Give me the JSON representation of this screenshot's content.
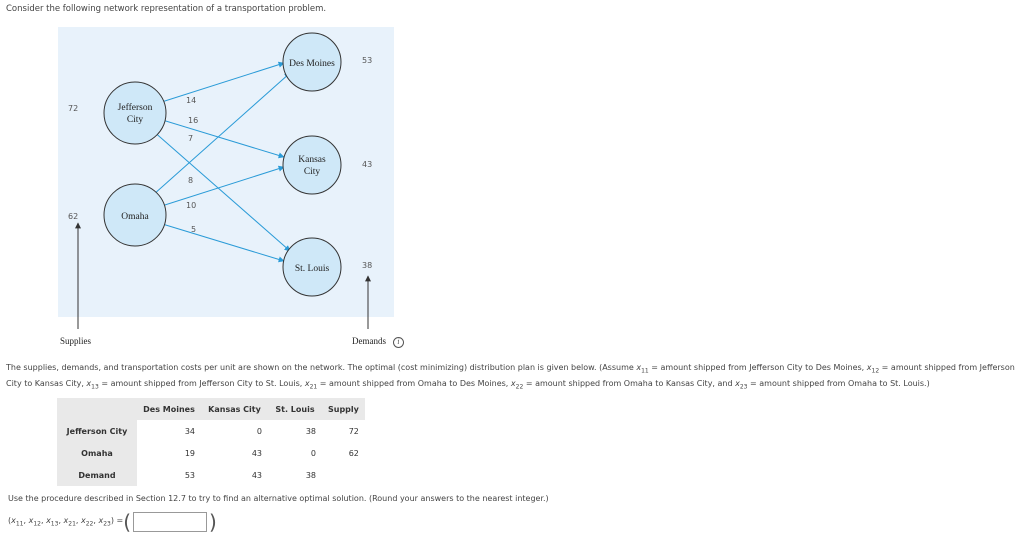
{
  "intro": "Consider the following network representation of a transportation problem.",
  "figure": {
    "background": "#e8f2fb",
    "node_fill": "#cfe8f8",
    "arrow_color": "#2a9bd7",
    "sources": [
      {
        "label_lines": [
          "Jefferson",
          "City"
        ],
        "supply": "72"
      },
      {
        "label_lines": [
          "Omaha"
        ],
        "supply": "62"
      }
    ],
    "destinations": [
      {
        "label_lines": [
          "Des Moines"
        ],
        "demand": "53"
      },
      {
        "label_lines": [
          "Kansas",
          "City"
        ],
        "demand": "43"
      },
      {
        "label_lines": [
          "St. Louis"
        ],
        "demand": "38"
      }
    ],
    "costs": [
      "14",
      "16",
      "7",
      "8",
      "10",
      "5"
    ],
    "supplies_label": "Supplies",
    "demands_label": "Demands"
  },
  "info_icon": "i",
  "paragraph": {
    "p1": "The supplies, demands, and transportation costs per unit are shown on the network. The optimal (cost minimizing) distribution plan is given below. (Assume ",
    "x11_def": " = amount shipped from Jefferson City to Des Moines, ",
    "x12_def": " = amount shipped from Jefferson City to Kansas City, ",
    "x13_def": " = amount shipped from Jefferson City to St. Louis, ",
    "x21_def": " = amount shipped from Omaha to Des Moines, ",
    "x22_def": " = amount shipped from Omaha to Kansas City, and ",
    "x23_def": " = amount shipped from Omaha to St. Louis.)"
  },
  "table": {
    "headers": [
      "Des Moines",
      "Kansas City",
      "St. Louis",
      "Supply"
    ],
    "rows": [
      {
        "label": "Jefferson City",
        "cells": [
          "34",
          "0",
          "38",
          "72"
        ]
      },
      {
        "label": "Omaha",
        "cells": [
          "19",
          "43",
          "0",
          "62"
        ]
      },
      {
        "label": "Demand",
        "cells": [
          "53",
          "43",
          "38",
          ""
        ]
      }
    ]
  },
  "question": "Use the procedure described in Section 12.7 to try to find an alternative optimal solution. (Round your answers to the nearest integer.)",
  "answer": {
    "vars": [
      "11",
      "12",
      "13",
      "21",
      "22",
      "23"
    ],
    "value": ""
  }
}
